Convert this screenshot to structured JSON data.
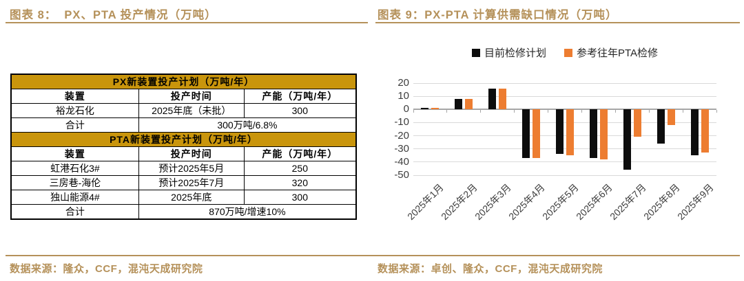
{
  "left_panel": {
    "title": "图表 8：  PX、PTA 投产情况（万吨）",
    "source": "数据来源：隆众，CCF，混沌天成研究院",
    "table": {
      "sections": [
        {
          "header": "PX新装置投产计划（万吨/年）",
          "columns": [
            "装置",
            "投产时间",
            "产能（万吨/年）"
          ],
          "rows": [
            [
              "裕龙石化",
              "2025年底（未批）",
              "300"
            ]
          ],
          "total": [
            "合计",
            "300万吨/6.8%"
          ]
        },
        {
          "header": "PTA新装置投产计划（万吨/年）",
          "columns": [
            "装置",
            "投产时间",
            "产能（万吨/年）"
          ],
          "rows": [
            [
              "虹港石化3#",
              "预计2025年5月",
              "250"
            ],
            [
              "三房巷-海伦",
              "预计2025年7月",
              "320"
            ],
            [
              "独山能源4#",
              "2025年底",
              "300"
            ]
          ],
          "total": [
            "合计",
            "870万吨/增速10%"
          ]
        }
      ]
    }
  },
  "right_panel": {
    "title": "图表 9：PX-PTA 计算供需缺口情况（万吨）",
    "source": "数据来源：卓创、隆众，CCF，混沌天成研究院"
  },
  "chart_data": {
    "type": "bar",
    "title": "PX-PTA 计算供需缺口情况（万吨）",
    "categories": [
      "2025年1月",
      "2025年2月",
      "2025年3月",
      "2025年4月",
      "2025年5月",
      "2025年6月",
      "2025年7月",
      "2025年8月",
      "2025年9月"
    ],
    "series": [
      {
        "name": "目前检修计划",
        "color": "#0D0D0D",
        "values": [
          1,
          8,
          16,
          -37,
          -34,
          -37,
          -46,
          -26,
          -35
        ]
      },
      {
        "name": "参考往年PTA检修",
        "color": "#ED7D31",
        "values": [
          1,
          8,
          16,
          -37,
          -35,
          -38,
          -21,
          -12,
          -33
        ]
      }
    ],
    "ylim": [
      -50,
      20
    ],
    "yticks": [
      20,
      10,
      0,
      -10,
      -20,
      -30,
      -40,
      -50
    ],
    "grid": true,
    "legend_position": "top",
    "xlabel": "",
    "ylabel": ""
  },
  "colors": {
    "gold_accent": "#B5915A",
    "table_header_gold": "#C9950C",
    "series_black": "#0D0D0D",
    "series_orange": "#ED7D31",
    "gridline": "#D9D9D9",
    "zero_axis": "#A6A6A6"
  }
}
